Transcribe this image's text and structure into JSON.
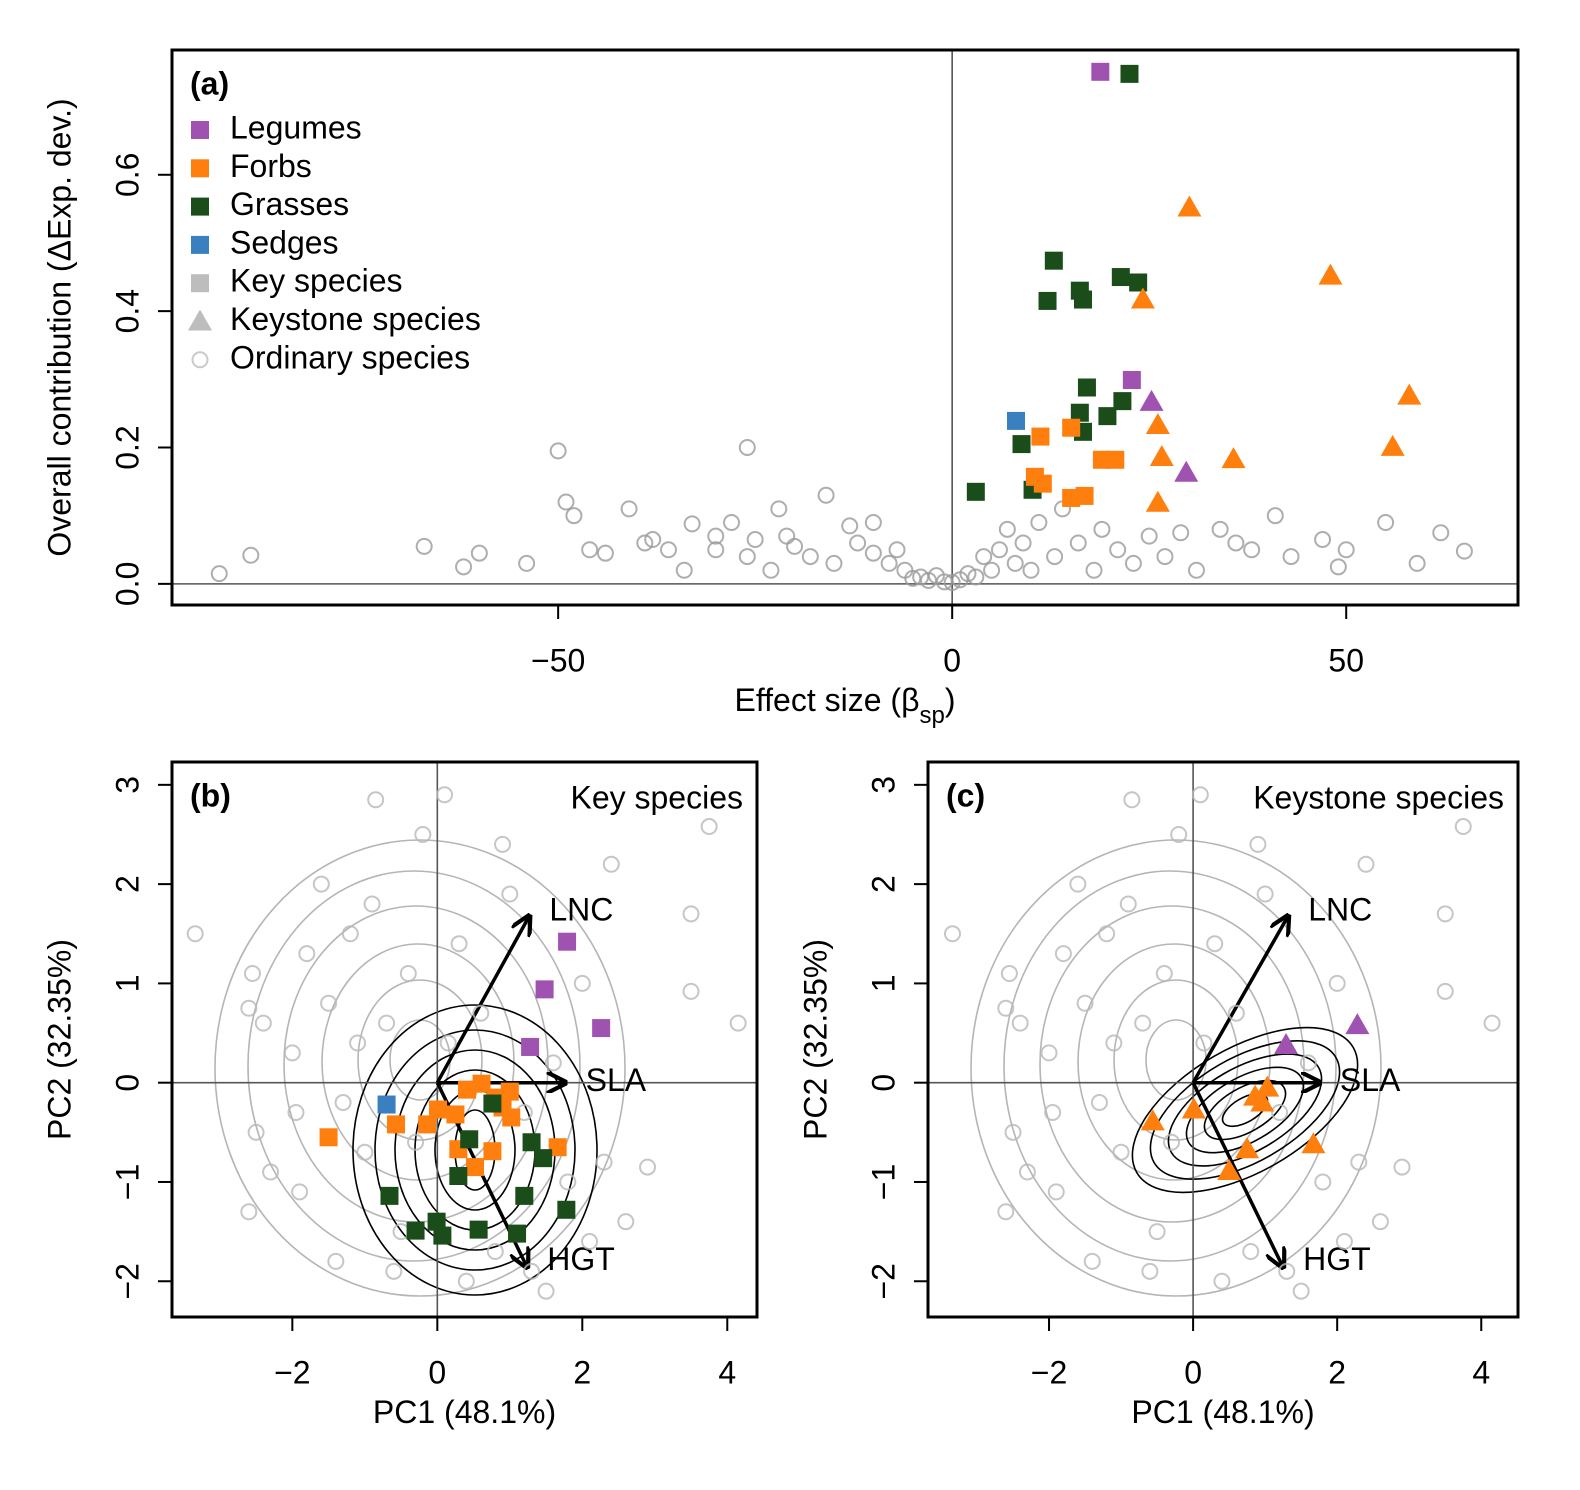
{
  "chart_data": [
    {
      "type": "scatter",
      "panel_label": "(a)",
      "xlabel": [
        "Effect size (β",
        "sp",
        ")"
      ],
      "ylabel": "Overall contribution (ΔExp. dev.)",
      "xlim": [
        -99,
        71.8
      ],
      "ylim": [
        -0.031,
        0.783
      ],
      "xticks": [
        {
          "value": -50,
          "label": "−50"
        },
        0,
        50
      ],
      "yticks": [
        {
          "value": 0,
          "label": "0.0"
        },
        0.2,
        0.4,
        0.6
      ],
      "legend": [
        {
          "name": "Legumes",
          "color": "#a052b0",
          "marker": "square"
        },
        {
          "name": "Forbs",
          "color": "#ff7f0e",
          "marker": "square"
        },
        {
          "name": "Grasses",
          "color": "#1a4d1a",
          "marker": "square"
        },
        {
          "name": "Sedges",
          "color": "#3a7fc0",
          "marker": "square"
        },
        {
          "name": "Key species",
          "color": "#bdbdbd",
          "marker": "square"
        },
        {
          "name": "Keystone species",
          "color": "#bdbdbd",
          "marker": "triangle"
        },
        {
          "name": "Ordinary species",
          "color": "#bdbdbd",
          "marker": "circle"
        }
      ],
      "series": [
        {
          "color": "#9a9a9a",
          "marker": "circle",
          "x": [
            -93,
            -89,
            -67,
            -62,
            -60,
            -54,
            -50,
            -49,
            -48,
            -46,
            -44,
            -41,
            -39,
            -38,
            -36,
            -34,
            -33,
            -30,
            -30,
            -28,
            -26,
            -26,
            -25,
            -23,
            -22,
            -21,
            -20,
            -18,
            -16,
            -15,
            -13,
            -12,
            -10,
            -10,
            -8,
            -7,
            -6,
            -5,
            -4,
            -3,
            -2,
            -1,
            0,
            1,
            2,
            3,
            4,
            5,
            6,
            7,
            8,
            9,
            10,
            11,
            13,
            14,
            16,
            18,
            19,
            21,
            23,
            25,
            27,
            29,
            31,
            34,
            36,
            38,
            41,
            43,
            47,
            49,
            50,
            55,
            59,
            62,
            65
          ],
          "values": [
            0.015,
            0.042,
            0.055,
            0.025,
            0.045,
            0.03,
            0.195,
            0.12,
            0.1,
            0.05,
            0.045,
            0.11,
            0.06,
            0.065,
            0.05,
            0.02,
            0.088,
            0.07,
            0.05,
            0.09,
            0.04,
            0.2,
            0.065,
            0.02,
            0.11,
            0.07,
            0.055,
            0.04,
            0.13,
            0.03,
            0.085,
            0.06,
            0.09,
            0.045,
            0.03,
            0.05,
            0.02,
            0.008,
            0.01,
            0.005,
            0.012,
            0.003,
            0.002,
            0.006,
            0.015,
            0.01,
            0.04,
            0.02,
            0.05,
            0.08,
            0.03,
            0.06,
            0.02,
            0.09,
            0.04,
            0.11,
            0.06,
            0.02,
            0.08,
            0.05,
            0.03,
            0.07,
            0.04,
            0.075,
            0.02,
            0.08,
            0.06,
            0.05,
            0.1,
            0.04,
            0.065,
            0.025,
            0.05,
            0.09,
            0.03,
            0.075,
            0.048
          ]
        },
        {
          "color": "#a052b0",
          "marker": "square",
          "x": [
            18.8,
            22.8
          ],
          "values": [
            0.751,
            0.299
          ]
        },
        {
          "color": "#1a4d1a",
          "marker": "square",
          "x": [
            22.5,
            12.9,
            12.1,
            16.2,
            16.6,
            21.4,
            23.6,
            17.1,
            21.6,
            16.2,
            19.7,
            16.6,
            8.8,
            3.0,
            10.2
          ],
          "values": [
            0.748,
            0.474,
            0.415,
            0.43,
            0.417,
            0.45,
            0.442,
            0.288,
            0.268,
            0.251,
            0.246,
            0.223,
            0.205,
            0.135,
            0.138
          ]
        },
        {
          "color": "#3a7fc0",
          "marker": "square",
          "x": [
            8.1
          ],
          "values": [
            0.239
          ]
        },
        {
          "color": "#ff7f0e",
          "marker": "square",
          "x": [
            11.2,
            15.1,
            10.5,
            11.5,
            15.1,
            16.8,
            19.0,
            20.7
          ],
          "values": [
            0.216,
            0.229,
            0.157,
            0.147,
            0.126,
            0.129,
            0.182,
            0.182
          ]
        },
        {
          "color": "#ff7f0e",
          "marker": "triangle",
          "x": [
            30.1,
            48.0,
            24.2,
            26.1,
            26.6,
            35.7,
            58.0,
            55.9,
            26.1
          ],
          "values": [
            0.552,
            0.452,
            0.417,
            0.233,
            0.186,
            0.183,
            0.276,
            0.201,
            0.119
          ]
        },
        {
          "color": "#a052b0",
          "marker": "triangle",
          "x": [
            25.3,
            29.7
          ],
          "values": [
            0.267,
            0.163
          ]
        }
      ]
    },
    {
      "type": "scatter",
      "panel_label": "(b)",
      "corner_label": "Key species",
      "xlabel": [
        "PC1 (48.1%)"
      ],
      "ylabel": "PC2 (32.35%)",
      "xlim": [
        -3.66,
        4.41
      ],
      "ylim": [
        -2.36,
        3.23
      ],
      "xticks": [
        {
          "value": -2,
          "label": "−2"
        },
        0,
        2,
        4
      ],
      "yticks": [
        {
          "value": -2,
          "label": "−2"
        },
        {
          "value": -1,
          "label": "−1"
        },
        0,
        1,
        2,
        3
      ],
      "arrows": [
        {
          "label": "LNC",
          "x": 1.27,
          "y": 1.68
        },
        {
          "label": "SLA",
          "x": 1.77,
          "y": 0
        },
        {
          "label": "HGT",
          "x": 1.24,
          "y": -1.86
        }
      ],
      "series": [
        {
          "color": "#b8b8b8",
          "marker": "circle",
          "x": [
            -3.34,
            -2.6,
            -2.55,
            -2.4,
            -2.5,
            -2.6,
            -2.0,
            -1.9,
            -1.8,
            -1.6,
            -1.5,
            -1.3,
            -1.2,
            -1.1,
            -1.0,
            -0.9,
            -0.85,
            -0.7,
            -0.5,
            -0.4,
            -0.3,
            -0.2,
            0.1,
            0.15,
            0.3,
            0.4,
            0.6,
            0.8,
            1.0,
            1.2,
            1.5,
            1.6,
            1.8,
            2.0,
            2.1,
            2.3,
            2.4,
            2.6,
            2.9,
            3.5,
            3.5,
            3.75,
            4.15,
            -1.95,
            -0.6,
            0.9,
            -1.4,
            1.3,
            -2.3
          ],
          "values": [
            1.5,
            0.75,
            1.1,
            0.6,
            -0.5,
            -1.3,
            0.3,
            -1.1,
            1.3,
            2.0,
            0.8,
            -0.2,
            1.5,
            0.4,
            -0.7,
            1.8,
            2.85,
            0.6,
            -1.5,
            1.1,
            -0.6,
            2.5,
            2.9,
            0.4,
            1.4,
            -2.0,
            0.7,
            -1.7,
            1.9,
            -0.3,
            -2.1,
            0.2,
            -1.0,
            1.0,
            -1.6,
            -0.8,
            2.2,
            -1.4,
            -0.85,
            1.7,
            0.92,
            2.58,
            0.6,
            -0.3,
            -1.9,
            2.4,
            -1.8,
            -1.9,
            -0.9
          ]
        },
        {
          "color": "#a052b0",
          "marker": "square",
          "x": [
            1.79,
            1.48,
            2.26,
            1.28
          ],
          "values": [
            1.42,
            0.94,
            0.55,
            0.36
          ]
        },
        {
          "color": "#3a7fc0",
          "marker": "square",
          "x": [
            -0.7
          ],
          "values": [
            -0.22
          ]
        },
        {
          "color": "#ff7f0e",
          "marker": "square",
          "x": [
            -1.5,
            -0.57,
            -0.14,
            0.01,
            0.25,
            0.41,
            0.61,
            0.8,
            1.0,
            0.9,
            1.02,
            0.29,
            0.52,
            0.76,
            1.66
          ],
          "values": [
            -0.55,
            -0.42,
            -0.42,
            -0.27,
            -0.32,
            -0.07,
            -0.01,
            -0.15,
            -0.09,
            -0.25,
            -0.35,
            -0.67,
            -0.85,
            -0.69,
            -0.65
          ]
        },
        {
          "color": "#1a4d1a",
          "marker": "square",
          "x": [
            0.76,
            0.44,
            0.29,
            1.3,
            1.46,
            1.2,
            1.78,
            -0.66,
            -0.01,
            -0.3,
            0.07,
            0.57,
            1.1
          ],
          "values": [
            -0.21,
            -0.57,
            -0.94,
            -0.6,
            -0.76,
            -1.14,
            -1.28,
            -1.14,
            -1.4,
            -1.49,
            -1.54,
            -1.48,
            -1.52
          ]
        }
      ]
    },
    {
      "type": "scatter",
      "panel_label": "(c)",
      "corner_label": "Keystone species",
      "xlabel": [
        "PC1 (48.1%)"
      ],
      "ylabel": "PC2 (32.35%)",
      "xlim": [
        -3.68,
        4.51
      ],
      "ylim": [
        -2.36,
        3.23
      ],
      "xticks": [
        {
          "value": -2,
          "label": "−2"
        },
        0,
        2,
        4
      ],
      "yticks": [
        {
          "value": -2,
          "label": "−2"
        },
        {
          "value": -1,
          "label": "−1"
        },
        0,
        1,
        2,
        3
      ],
      "arrows": [
        {
          "label": "LNC",
          "x": 1.32,
          "y": 1.68
        },
        {
          "label": "SLA",
          "x": 1.76,
          "y": 0
        },
        {
          "label": "HGT",
          "x": 1.25,
          "y": -1.86
        }
      ],
      "series": [
        {
          "color": "#b8b8b8",
          "marker": "circle",
          "x": [
            -3.34,
            -2.6,
            -2.55,
            -2.4,
            -2.5,
            -2.6,
            -2.0,
            -1.9,
            -1.8,
            -1.6,
            -1.5,
            -1.3,
            -1.2,
            -1.1,
            -1.0,
            -0.9,
            -0.85,
            -0.7,
            -0.5,
            -0.4,
            -0.3,
            -0.2,
            0.1,
            0.15,
            0.3,
            0.4,
            0.6,
            0.8,
            1.0,
            1.2,
            1.5,
            1.6,
            1.8,
            2.0,
            2.1,
            2.3,
            2.4,
            2.6,
            2.9,
            3.5,
            3.5,
            3.75,
            4.15,
            -1.95,
            -0.6,
            0.9,
            -1.4,
            1.3,
            -2.3
          ],
          "values": [
            1.5,
            0.75,
            1.1,
            0.6,
            -0.5,
            -1.3,
            0.3,
            -1.1,
            1.3,
            2.0,
            0.8,
            -0.2,
            1.5,
            0.4,
            -0.7,
            1.8,
            2.85,
            0.6,
            -1.5,
            1.1,
            -0.6,
            2.5,
            2.9,
            0.4,
            1.4,
            -2.0,
            0.7,
            -1.7,
            1.9,
            -0.3,
            -2.1,
            0.2,
            -1.0,
            1.0,
            -1.6,
            -0.8,
            2.2,
            -1.4,
            -0.85,
            1.7,
            0.92,
            2.58,
            0.6,
            -0.3,
            -1.9,
            2.4,
            -1.8,
            -1.9,
            -0.9
          ]
        },
        {
          "color": "#a052b0",
          "marker": "triangle",
          "x": [
            2.28,
            1.29
          ],
          "values": [
            0.58,
            0.38
          ]
        },
        {
          "color": "#ff7f0e",
          "marker": "triangle",
          "x": [
            -0.56,
            0.01,
            1.03,
            0.86,
            0.96,
            1.67,
            0.75,
            0.5
          ],
          "values": [
            -0.39,
            -0.27,
            -0.05,
            -0.14,
            -0.2,
            -0.62,
            -0.67,
            -0.89
          ]
        }
      ]
    }
  ]
}
